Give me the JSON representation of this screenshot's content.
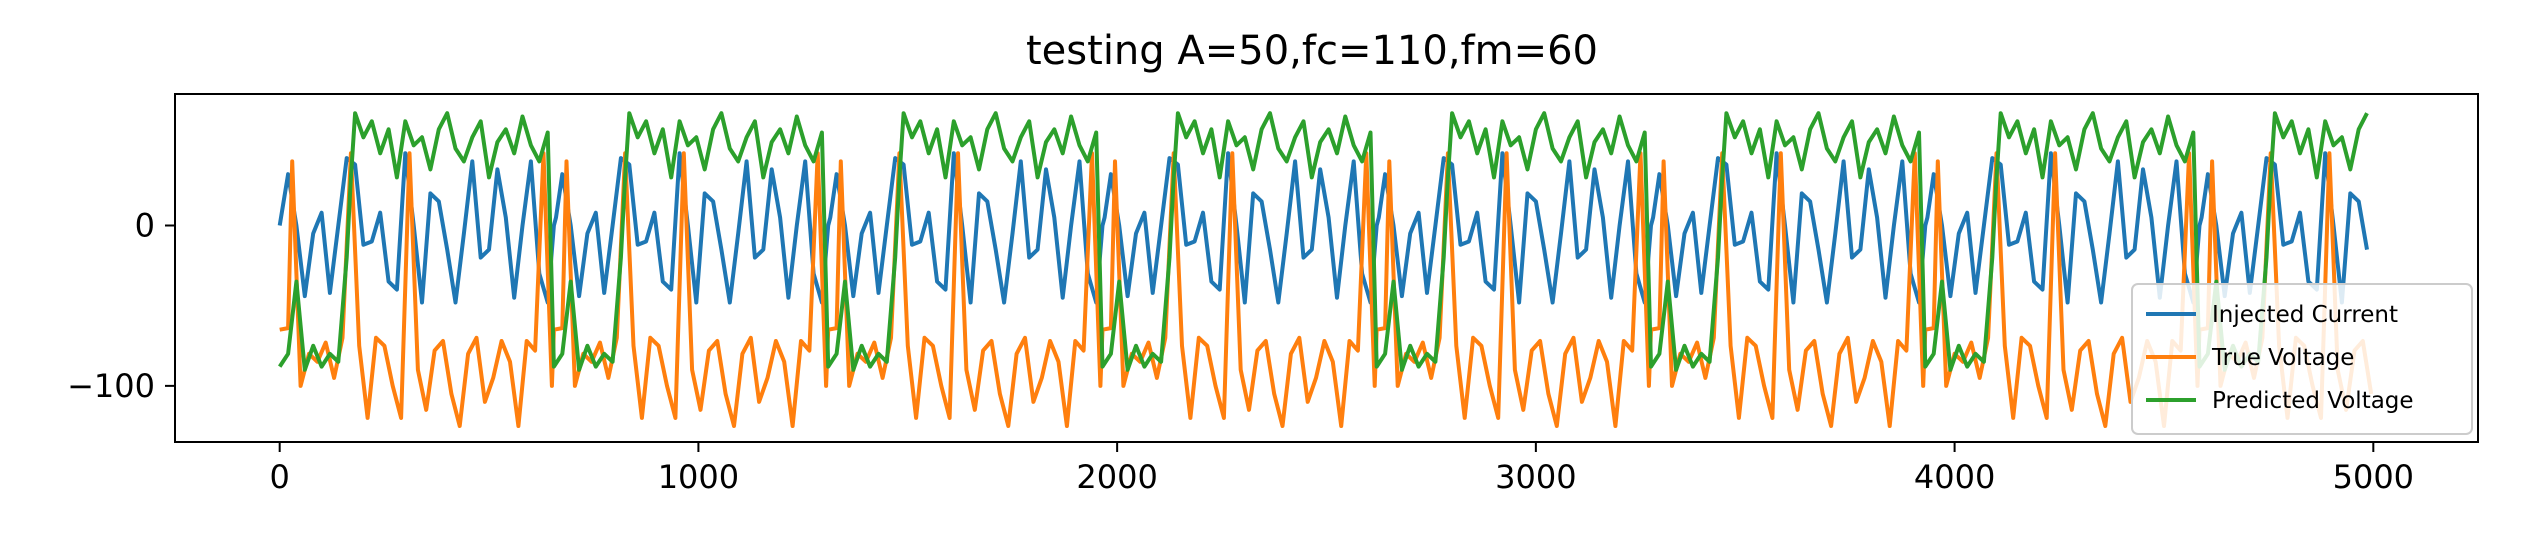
{
  "chart_data": {
    "type": "line",
    "title": "testing A=50,fc=110,fm=60",
    "xlabel": "",
    "ylabel": "",
    "xlim": [
      -250,
      5250
    ],
    "ylim": [
      -135,
      82
    ],
    "xticks": [
      0,
      1000,
      2000,
      3000,
      4000,
      5000
    ],
    "xtick_labels": [
      "0",
      "1000",
      "2000",
      "3000",
      "4000",
      "5000"
    ],
    "yticks": [
      0,
      -100
    ],
    "ytick_labels": [
      "0",
      "−100"
    ],
    "grid": false,
    "legend_position": "lower-right",
    "series": [
      {
        "name": "Injected Current",
        "color": "#1f77b4",
        "x": [
          0,
          20,
          40,
          60,
          80,
          100,
          120,
          140,
          160,
          180,
          200,
          220,
          240,
          260,
          280,
          300,
          320,
          340,
          360,
          380,
          400,
          420,
          440,
          460,
          480,
          500,
          520,
          540,
          560,
          580,
          600,
          620,
          640,
          660
        ],
        "values": [
          0,
          32,
          0,
          -44,
          -5,
          8,
          -42,
          0,
          42,
          38,
          -12,
          -10,
          8,
          -35,
          -40,
          45,
          0,
          -48,
          20,
          15,
          -15,
          -48,
          -5,
          40,
          -20,
          -15,
          35,
          5,
          -45,
          0,
          40,
          -30,
          -48,
          5
        ]
      },
      {
        "name": "True Voltage",
        "color": "#ff7f0e",
        "x": [
          0,
          20,
          30,
          50,
          70,
          90,
          110,
          130,
          150,
          170,
          190,
          210,
          230,
          250,
          270,
          290,
          310,
          330,
          350,
          370,
          390,
          410,
          430,
          450,
          470,
          490,
          510,
          530,
          550,
          570,
          590,
          610,
          630,
          650
        ],
        "values": [
          -65,
          -64,
          40,
          -100,
          -80,
          -85,
          -73,
          -95,
          -70,
          45,
          -75,
          -120,
          -70,
          -75,
          -100,
          -120,
          45,
          -90,
          -115,
          -78,
          -72,
          -105,
          -125,
          -80,
          -70,
          -110,
          -95,
          -72,
          -85,
          -125,
          -72,
          -78,
          45,
          -100
        ]
      },
      {
        "name": "Predicted Voltage",
        "color": "#2ca02c",
        "x": [
          0,
          20,
          40,
          60,
          80,
          100,
          120,
          140,
          160,
          170,
          180,
          200,
          220,
          240,
          260,
          280,
          300,
          320,
          340,
          360,
          380,
          400,
          420,
          440,
          460,
          480,
          500,
          520,
          540,
          560,
          580,
          600,
          620,
          640
        ],
        "values": [
          -88,
          -80,
          -35,
          -90,
          -75,
          -88,
          -80,
          -85,
          -20,
          30,
          70,
          55,
          65,
          45,
          60,
          30,
          65,
          50,
          55,
          35,
          60,
          70,
          48,
          40,
          55,
          65,
          30,
          52,
          60,
          45,
          68,
          50,
          40,
          58
        ]
      }
    ],
    "period": 655,
    "x_end": 5000
  }
}
